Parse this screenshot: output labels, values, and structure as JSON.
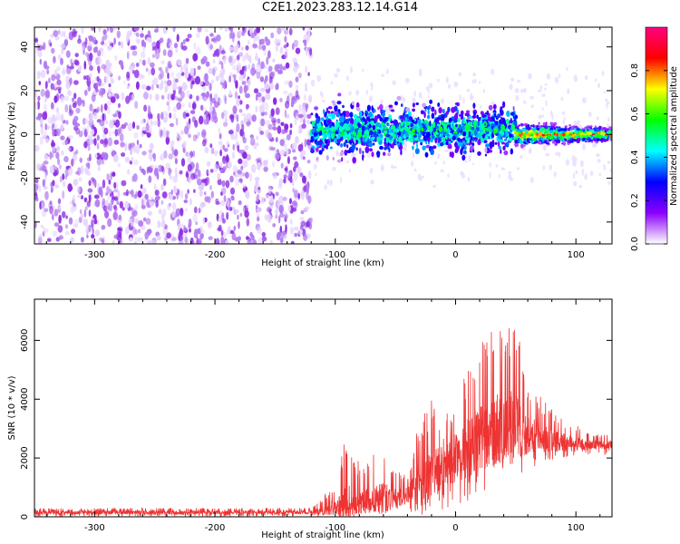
{
  "figure_title": "C2E1.2023.283.12.14.G14",
  "chart_data": [
    {
      "type": "heatmap",
      "title": "",
      "xlabel": "Height of straight line (km)",
      "ylabel": "Frequency (Hz)",
      "xlim": [
        -350,
        130
      ],
      "ylim": [
        -50,
        49
      ],
      "x_ticks": [
        -300,
        -200,
        -100,
        0,
        100
      ],
      "x_tick_labels": [
        "-300",
        "-200",
        "-100",
        "0",
        "100"
      ],
      "y_ticks": [
        -40,
        -20,
        0,
        20,
        40
      ],
      "y_tick_labels": [
        "-40",
        "-20",
        "0",
        "20",
        "40"
      ],
      "colorbar": {
        "label": "Normalized spectral amplitude",
        "range": [
          0.0,
          1.0
        ],
        "ticks": [
          0.0,
          0.2,
          0.4,
          0.6,
          0.8
        ],
        "tick_labels": [
          "0.0",
          "0.2",
          "0.4",
          "0.6",
          "0.8"
        ],
        "colors": [
          "#ffffff",
          "#8b00ff",
          "#0000ff",
          "#00ffff",
          "#00ff00",
          "#ffff00",
          "#ff0000",
          "#ff0080"
        ]
      },
      "regions": [
        {
          "x_range": [
            -350,
            -120
          ],
          "freq_range": [
            -50,
            49
          ],
          "amplitude": 0.12,
          "description_color": "#8b2be2"
        },
        {
          "x_range": [
            -120,
            50
          ],
          "freq_center": 2,
          "freq_halfwidth": 10,
          "amplitude": 0.3
        },
        {
          "x_range": [
            50,
            130
          ],
          "freq_center": 0,
          "freq_halfwidth": 4,
          "amplitude": 0.75
        }
      ]
    },
    {
      "type": "line",
      "title": "",
      "xlabel": "Height of straight line (km)",
      "ylabel": "SNR (10 * v/v)",
      "xlim": [
        -350,
        130
      ],
      "ylim": [
        0,
        7400
      ],
      "x_ticks": [
        -300,
        -200,
        -100,
        0,
        100
      ],
      "x_tick_labels": [
        "-300",
        "-200",
        "-100",
        "0",
        "100"
      ],
      "y_ticks": [
        0,
        2000,
        4000,
        6000
      ],
      "y_tick_labels": [
        "0",
        "2000",
        "4000",
        "6000"
      ],
      "series": [
        {
          "color": "#ee3333",
          "envelope": {
            "x": [
              -350,
              -300,
              -200,
              -120,
              -110,
              -100,
              -90,
              -80,
              -70,
              -60,
              -50,
              -40,
              -30,
              -20,
              -10,
              0,
              10,
              20,
              30,
              40,
              50,
              60,
              70,
              80,
              90,
              100,
              110,
              120,
              130
            ],
            "max": [
              300,
              300,
              300,
              300,
              700,
              1200,
              2900,
              1800,
              2000,
              2600,
              1600,
              1400,
              3300,
              4100,
              3200,
              4300,
              5100,
              5900,
              6600,
              6500,
              7300,
              4600,
              4100,
              3700,
              3300,
              3200,
              2900,
              2800,
              2800
            ],
            "min": [
              0,
              0,
              0,
              0,
              0,
              0,
              0,
              0,
              0,
              0,
              0,
              0,
              0,
              100,
              200,
              300,
              500,
              700,
              1000,
              1200,
              1400,
              1600,
              1800,
              1900,
              2000,
              2100,
              2100,
              2100,
              2100
            ],
            "mean": [
              150,
              150,
              150,
              150,
              200,
              350,
              450,
              500,
              550,
              600,
              650,
              700,
              1000,
              1400,
              1800,
              2000,
              2300,
              2600,
              2900,
              3000,
              3000,
              2800,
              2700,
              2600,
              2550,
              2500,
              2450,
              2450,
              2450
            ]
          }
        }
      ]
    }
  ]
}
